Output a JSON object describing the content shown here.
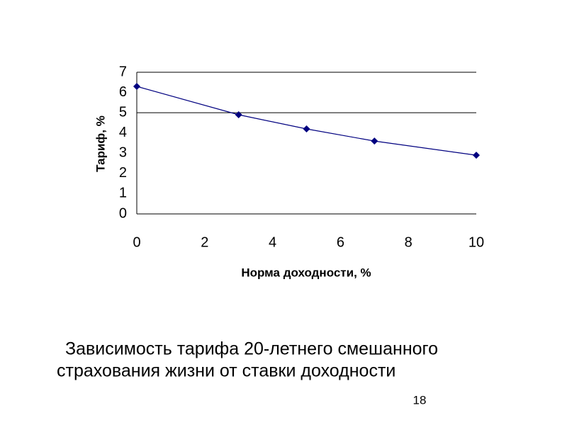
{
  "chart_data": {
    "type": "line",
    "x": [
      0,
      3,
      5,
      7,
      10
    ],
    "series": [
      {
        "color": "#000080",
        "values": [
          6.3,
          4.9,
          4.2,
          3.6,
          2.9
        ]
      }
    ],
    "xlabel": "Норма доходности, %",
    "ylabel": "Тариф, %",
    "xlim": [
      0,
      10
    ],
    "xticks": [
      0,
      2,
      4,
      6,
      8,
      10
    ],
    "ylim": [
      0,
      7
    ],
    "yticks": [
      0,
      1,
      2,
      3,
      4,
      5,
      6,
      7
    ],
    "ygrid": [
      5,
      7
    ]
  },
  "caption": [
    "Зависимость тарифа 20-летнего смешанного",
    "страхования жизни от ставки доходности"
  ],
  "page_number": 18
}
